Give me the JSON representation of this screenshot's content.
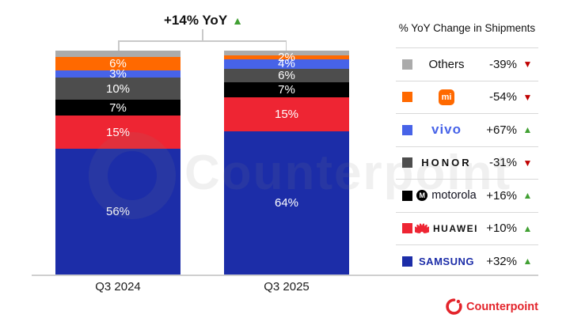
{
  "header": {
    "title": "+14% YoY",
    "trend": "up"
  },
  "watermark": {
    "text": "Counterpoint"
  },
  "chart_data": {
    "type": "bar",
    "subtype": "100-percent-stacked-column",
    "title": "+14% YoY",
    "categories": [
      "Q3 2024",
      "Q3 2025"
    ],
    "unit": "%",
    "ylim": [
      0,
      100
    ],
    "grid": false,
    "stack_order": "top-to-bottom",
    "series": [
      {
        "key": "others",
        "name": "Others",
        "color": "#ABABAB",
        "values": [
          3,
          2
        ],
        "show_label": false
      },
      {
        "key": "xiaomi",
        "name": "Xiaomi",
        "color": "#FF6900",
        "values": [
          6,
          2
        ]
      },
      {
        "key": "vivo",
        "name": "vivo",
        "color": "#4763E8",
        "values": [
          3,
          4
        ]
      },
      {
        "key": "honor",
        "name": "HONOR",
        "color": "#4D4D4D",
        "values": [
          10,
          6
        ]
      },
      {
        "key": "motorola",
        "name": "motorola",
        "color": "#000000",
        "values": [
          7,
          7
        ]
      },
      {
        "key": "huawei",
        "name": "HUAWEI",
        "color": "#EE2533",
        "values": [
          15,
          15
        ]
      },
      {
        "key": "samsung",
        "name": "SAMSUNG",
        "color": "#1C2DA8",
        "values": [
          56,
          64
        ]
      }
    ]
  },
  "legend": {
    "title": "% YoY Change in Shipments",
    "position": "right",
    "items": [
      {
        "key": "others",
        "label": "Others",
        "swatch": "#ABABAB",
        "change": "-39%",
        "direction": "down"
      },
      {
        "key": "xiaomi",
        "label": "mi",
        "swatch": "#FF6900",
        "change": "-54%",
        "direction": "down"
      },
      {
        "key": "vivo",
        "label": "vivo",
        "swatch": "#4763E8",
        "change": "+67%",
        "direction": "up"
      },
      {
        "key": "honor",
        "label": "HONOR",
        "swatch": "#4D4D4D",
        "change": "-31%",
        "direction": "down"
      },
      {
        "key": "motorola",
        "label": "motorola",
        "logo_text": "M",
        "swatch": "#000000",
        "change": "+16%",
        "direction": "up"
      },
      {
        "key": "huawei",
        "label": "HUAWEI",
        "swatch": "#EE2533",
        "change": "+10%",
        "direction": "up"
      },
      {
        "key": "samsung",
        "label": "SAMSUNG",
        "swatch": "#1C2DA8",
        "change": "+32%",
        "direction": "up"
      }
    ],
    "colors": {
      "up": "#41A033",
      "down": "#C00000"
    }
  },
  "footer": {
    "brand": "Counterpoint"
  }
}
